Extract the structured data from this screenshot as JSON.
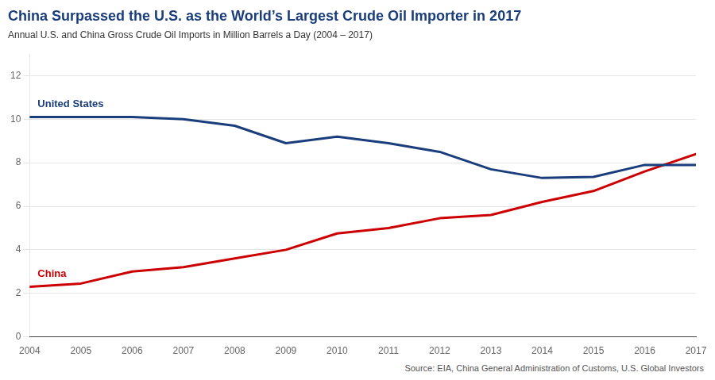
{
  "chart_data": {
    "type": "line",
    "title": "China Surpassed the U.S. as the World’s Largest Crude Oil Importer in 2017",
    "subtitle": "Annual U.S. and China Gross Crude Oil Imports in Million Barrels a Day (2004 – 2017)",
    "source": "Source: EIA, China General Administration of Customs, U.S. Global Investors",
    "title_color": "#1a3d7c",
    "x": [
      2004,
      2005,
      2006,
      2007,
      2008,
      2009,
      2010,
      2011,
      2012,
      2013,
      2014,
      2015,
      2016,
      2017
    ],
    "series": [
      {
        "name": "United States",
        "color": "#1a3d7c",
        "values": [
          10.1,
          10.1,
          10.1,
          10.0,
          9.7,
          8.9,
          9.2,
          8.9,
          8.5,
          7.7,
          7.3,
          7.35,
          7.9,
          7.9
        ]
      },
      {
        "name": "China",
        "color": "#cc0000",
        "values": [
          2.3,
          2.45,
          3.0,
          3.2,
          3.6,
          4.0,
          4.75,
          5.0,
          5.45,
          5.6,
          6.2,
          6.7,
          7.6,
          8.4
        ]
      }
    ],
    "xlim": [
      2004,
      2017
    ],
    "xticks": [
      2004,
      2005,
      2006,
      2007,
      2008,
      2009,
      2010,
      2011,
      2012,
      2013,
      2014,
      2015,
      2016,
      2017
    ],
    "ylim": [
      0,
      13
    ],
    "yticks": [
      0,
      2,
      4,
      6,
      8,
      10,
      12
    ],
    "grid": true
  }
}
